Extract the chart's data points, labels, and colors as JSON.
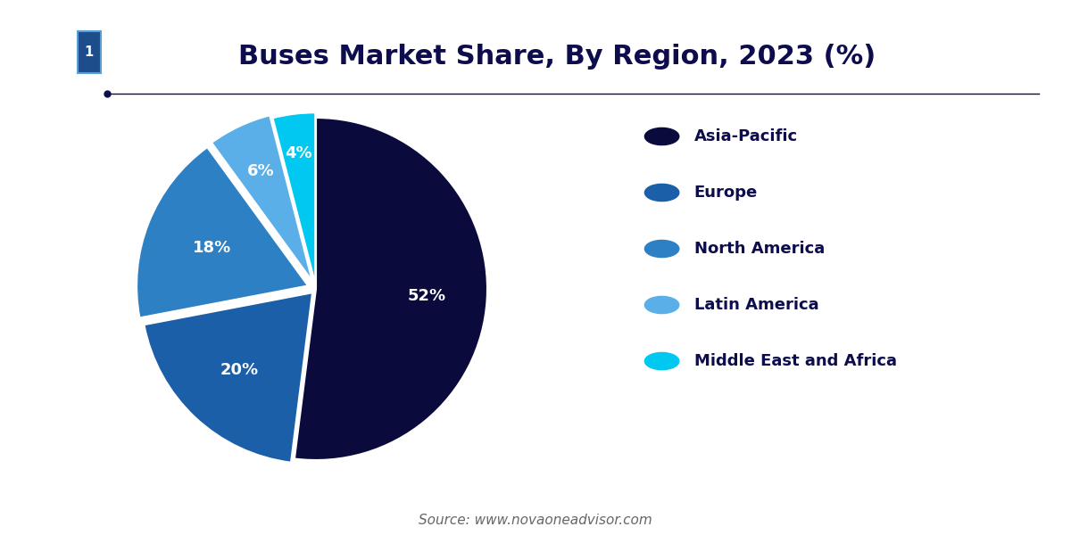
{
  "title": "Buses Market Share, By Region, 2023 (%)",
  "title_color": "#0d0d4d",
  "title_fontsize": 22,
  "background_color": "#ffffff",
  "slices": [
    52,
    20,
    18,
    6,
    4
  ],
  "labels": [
    "Asia-Pacific",
    "Europe",
    "North America",
    "Latin America",
    "Middle East and Africa"
  ],
  "colors": [
    "#0a0a3d",
    "#1a5fa8",
    "#2e80c4",
    "#5aafe8",
    "#00c8f0"
  ],
  "explode": [
    0,
    0.03,
    0.05,
    0.05,
    0.03
  ],
  "pct_labels": [
    "52%",
    "20%",
    "18%",
    "6%",
    "4%"
  ],
  "source_text": "Source: www.novaoneadvisor.com",
  "source_color": "#666666",
  "source_fontsize": 11,
  "legend_text_color": "#0d0d4d",
  "legend_fontsize": 13,
  "line_color": "#0d0d4d",
  "startangle": 90,
  "logo_bg": "#1e4d8c",
  "logo_border": "#5a9fd4"
}
